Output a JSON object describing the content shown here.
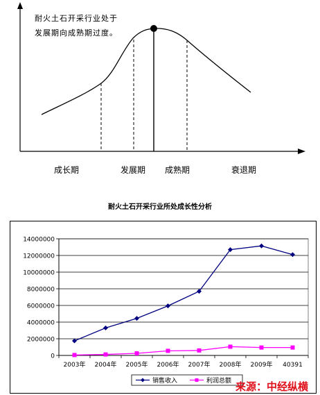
{
  "lifecycle": {
    "note": "耐火土石开采行业处于发展期向成熟期过度。",
    "stages": [
      "成长期",
      "发展期",
      "成熟期",
      "衰退期"
    ]
  },
  "caption": "耐火土石开采行业所处成长性分析",
  "source": "来源：中经纵横",
  "colors": {
    "sales": "#000080",
    "profit": "#ff00ff",
    "source": "#e0101a"
  },
  "chart_data": {
    "type": "line",
    "categories": [
      "2003年",
      "2004年",
      "2005年",
      "2006年",
      "2007年",
      "2008年",
      "2009年",
      "40391"
    ],
    "series": [
      {
        "name": "销售收入",
        "values": [
          1750000,
          3300000,
          4450000,
          5950000,
          7700000,
          12700000,
          13150000,
          12100000
        ]
      },
      {
        "name": "利润总额",
        "values": [
          50000,
          120000,
          250000,
          550000,
          600000,
          1050000,
          950000,
          950000
        ]
      }
    ],
    "yticks": [
      "0",
      "2000000",
      "4000000",
      "6000000",
      "8000000",
      "10000000",
      "12000000",
      "14000000"
    ],
    "ylim": [
      0,
      14000000
    ],
    "grid": true,
    "legend": "bottom"
  }
}
